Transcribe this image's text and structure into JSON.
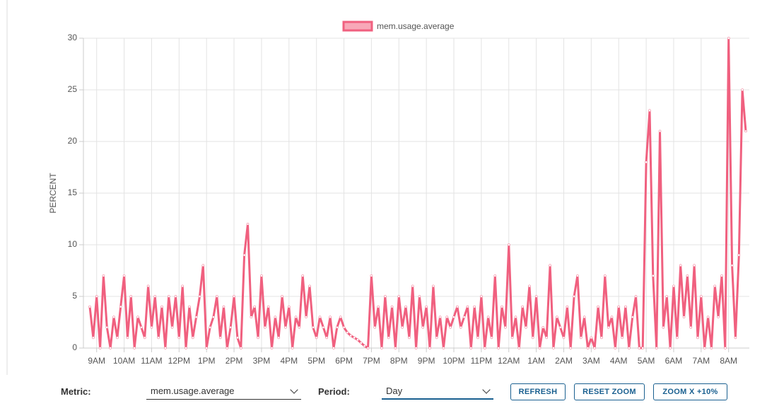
{
  "chart_data": {
    "type": "line",
    "ylabel": "PERCENT",
    "series": [
      {
        "name": "mem.usage.average",
        "color": "#f0607f",
        "values": [
          4,
          1,
          5,
          0,
          7,
          2,
          0,
          3,
          1,
          4,
          7,
          1,
          5,
          0,
          3,
          2,
          1,
          6,
          2,
          5,
          1,
          4,
          0,
          5,
          2,
          5,
          1,
          6,
          0,
          4,
          1,
          3,
          5,
          8,
          0,
          2,
          3,
          5,
          1,
          4,
          0,
          2,
          5,
          1,
          0,
          9,
          12,
          3,
          4,
          1,
          7,
          2,
          4,
          0,
          3,
          1,
          5,
          2,
          4,
          0,
          3,
          2,
          7,
          3,
          6,
          2,
          1,
          3,
          2,
          1,
          3,
          0,
          2,
          3,
          2,
          1.5,
          1.2,
          1,
          0.8,
          0.5,
          0.2,
          0,
          7,
          2,
          4,
          0,
          5,
          1,
          4,
          0,
          5,
          2,
          4,
          1,
          6,
          0,
          5,
          2,
          4,
          0,
          6,
          1,
          3,
          0,
          3,
          2,
          3,
          4,
          2,
          3,
          4,
          0,
          4,
          1,
          5,
          0,
          3,
          1,
          7,
          0,
          4,
          2,
          10,
          1,
          3,
          0,
          4,
          2,
          6,
          1,
          5,
          0,
          2,
          1,
          8,
          0,
          3,
          2,
          1,
          4,
          0,
          5,
          7,
          1,
          3,
          0,
          1,
          0,
          4,
          1,
          7,
          2,
          3,
          0,
          4,
          1,
          4,
          0,
          3,
          5,
          0,
          0,
          18,
          23,
          7,
          0,
          21,
          2,
          5,
          0,
          6,
          1,
          8,
          3,
          7,
          2,
          8,
          1,
          5,
          0,
          3,
          0,
          6,
          3,
          7,
          0,
          30,
          8,
          1,
          9,
          25,
          21
        ]
      }
    ],
    "categories": [
      null,
      null,
      "9AM",
      null,
      null,
      null,
      null,
      null,
      null,
      null,
      "10AM",
      null,
      null,
      null,
      null,
      null,
      null,
      null,
      "11AM",
      null,
      null,
      null,
      null,
      null,
      null,
      null,
      "12PM",
      null,
      null,
      null,
      null,
      null,
      null,
      null,
      "1PM",
      null,
      null,
      null,
      null,
      null,
      null,
      null,
      "2PM",
      null,
      null,
      null,
      null,
      null,
      null,
      null,
      "3PM",
      null,
      null,
      null,
      null,
      null,
      null,
      null,
      "4PM",
      null,
      null,
      null,
      null,
      null,
      null,
      null,
      "5PM",
      null,
      null,
      null,
      null,
      null,
      null,
      null,
      "6PM",
      null,
      null,
      null,
      null,
      null,
      null,
      null,
      "7PM",
      null,
      null,
      null,
      null,
      null,
      null,
      null,
      "8PM",
      null,
      null,
      null,
      null,
      null,
      null,
      null,
      "9PM",
      null,
      null,
      null,
      null,
      null,
      null,
      null,
      "10PM",
      null,
      null,
      null,
      null,
      null,
      null,
      null,
      "11PM",
      null,
      null,
      null,
      null,
      null,
      null,
      null,
      "12AM",
      null,
      null,
      null,
      null,
      null,
      null,
      null,
      "1AM",
      null,
      null,
      null,
      null,
      null,
      null,
      null,
      "2AM",
      null,
      null,
      null,
      null,
      null,
      null,
      null,
      "3AM",
      null,
      null,
      null,
      null,
      null,
      null,
      null,
      "4AM",
      null,
      null,
      null,
      null,
      null,
      null,
      null,
      "5AM",
      null,
      null,
      null,
      null,
      null,
      null,
      null,
      "6AM",
      null,
      null,
      null,
      null,
      null,
      null,
      null,
      "7AM",
      null,
      null,
      null,
      null,
      null,
      null,
      null,
      "8AM",
      null,
      null,
      null,
      null,
      null
    ],
    "ylim": [
      0,
      30
    ],
    "yticks": [
      0,
      5,
      10,
      15,
      20,
      25,
      30
    ],
    "grid": true,
    "legend": "top"
  },
  "controls": {
    "metric_label": "Metric:",
    "metric_value": "mem.usage.average",
    "period_label": "Period:",
    "period_value": "Day",
    "buttons": [
      "REFRESH",
      "RESET ZOOM",
      "ZOOM X +10%"
    ]
  }
}
